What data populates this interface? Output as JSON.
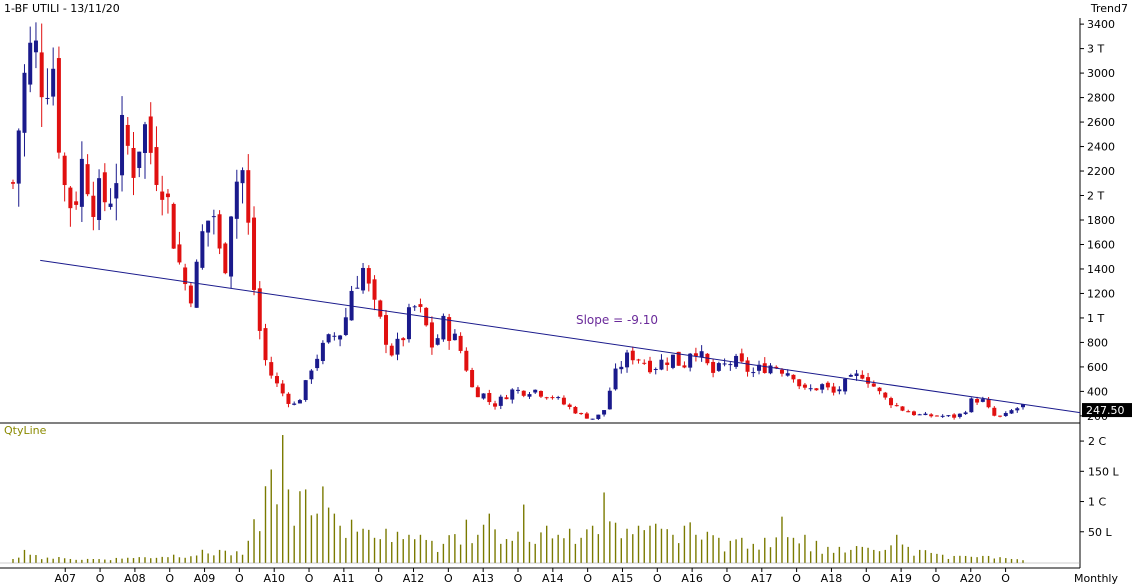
{
  "chart_data": [
    {
      "type": "candlestick",
      "title": "1-BF UTILI - 13/11/20",
      "indicator": "Trend7",
      "ylim": [
        150,
        3450
      ],
      "y_ticks": [
        {
          "v": 3400,
          "label": "3400"
        },
        {
          "v": 3200,
          "label": "3 T"
        },
        {
          "v": 3000,
          "label": "3000"
        },
        {
          "v": 2800,
          "label": "2800"
        },
        {
          "v": 2600,
          "label": "2600"
        },
        {
          "v": 2400,
          "label": "2400"
        },
        {
          "v": 2200,
          "label": "2200"
        },
        {
          "v": 2000,
          "label": "2 T"
        },
        {
          "v": 1800,
          "label": "1800"
        },
        {
          "v": 1600,
          "label": "1600"
        },
        {
          "v": 1400,
          "label": "1400"
        },
        {
          "v": 1200,
          "label": "1200"
        },
        {
          "v": 1000,
          "label": "1 T"
        },
        {
          "v": 800,
          "label": "800"
        },
        {
          "v": 600,
          "label": "600"
        },
        {
          "v": 400,
          "label": "400"
        },
        {
          "v": 200,
          "label": "200"
        }
      ],
      "last_price": 247.5,
      "last_price_label": "247.50",
      "trendline": {
        "from": {
          "i": 3,
          "y": 1470
        },
        "to": {
          "i": 176,
          "y": 210
        },
        "slope_label": "Slope = -9.10",
        "color": "#1a1a8c"
      },
      "up_color": "#1a1a8c",
      "down_color": "#e01010",
      "x_ticks": [
        {
          "i": 9,
          "label": "A07"
        },
        {
          "i": 15,
          "label": "O"
        },
        {
          "i": 21,
          "label": "A08"
        },
        {
          "i": 27,
          "label": "O"
        },
        {
          "i": 33,
          "label": "A09"
        },
        {
          "i": 39,
          "label": "O"
        },
        {
          "i": 45,
          "label": "A10"
        },
        {
          "i": 51,
          "label": "O"
        },
        {
          "i": 57,
          "label": "A11"
        },
        {
          "i": 63,
          "label": "O"
        },
        {
          "i": 69,
          "label": "A12"
        },
        {
          "i": 75,
          "label": "O"
        },
        {
          "i": 81,
          "label": "A13"
        },
        {
          "i": 87,
          "label": "O"
        },
        {
          "i": 93,
          "label": "A14"
        },
        {
          "i": 99,
          "label": "O"
        },
        {
          "i": 105,
          "label": "A15"
        },
        {
          "i": 111,
          "label": "O"
        },
        {
          "i": 117,
          "label": "A16"
        },
        {
          "i": 123,
          "label": "O"
        },
        {
          "i": 129,
          "label": "A17"
        },
        {
          "i": 135,
          "label": "O"
        },
        {
          "i": 141,
          "label": "A18"
        },
        {
          "i": 147,
          "label": "O"
        },
        {
          "i": 153,
          "label": "A19"
        },
        {
          "i": 159,
          "label": "O"
        },
        {
          "i": 165,
          "label": "A20"
        },
        {
          "i": 171,
          "label": "O"
        }
      ],
      "x_axis_label": "Monthly",
      "anchors": [
        [
          0,
          2100
        ],
        [
          1,
          2900
        ],
        [
          2,
          3250
        ],
        [
          3,
          2950
        ],
        [
          4,
          3100
        ],
        [
          5,
          2100
        ],
        [
          6,
          1900
        ],
        [
          7,
          2300
        ],
        [
          8,
          2000
        ],
        [
          9,
          1950
        ],
        [
          10,
          2050
        ],
        [
          11,
          2500
        ],
        [
          12,
          2250
        ],
        [
          13,
          2600
        ],
        [
          14,
          2300
        ],
        [
          15,
          2150
        ],
        [
          16,
          1700
        ],
        [
          17,
          1300
        ],
        [
          18,
          1200
        ],
        [
          19,
          1700
        ],
        [
          20,
          1900
        ],
        [
          21,
          1300
        ],
        [
          22,
          2100
        ],
        [
          23,
          2200
        ],
        [
          24,
          1300
        ],
        [
          25,
          700
        ],
        [
          26,
          500
        ],
        [
          27,
          380
        ],
        [
          28,
          280
        ],
        [
          29,
          380
        ],
        [
          30,
          650
        ],
        [
          31,
          750
        ],
        [
          32,
          850
        ],
        [
          33,
          900
        ],
        [
          34,
          1300
        ],
        [
          35,
          1400
        ],
        [
          36,
          1100
        ],
        [
          37,
          900
        ],
        [
          38,
          700
        ],
        [
          39,
          850
        ],
        [
          40,
          1100
        ],
        [
          41,
          1000
        ],
        [
          42,
          750
        ],
        [
          43,
          950
        ],
        [
          44,
          850
        ],
        [
          45,
          700
        ],
        [
          46,
          400
        ],
        [
          47,
          380
        ],
        [
          48,
          280
        ],
        [
          49,
          350
        ],
        [
          50,
          410
        ],
        [
          51,
          400
        ],
        [
          52,
          420
        ],
        [
          53,
          380
        ],
        [
          54,
          360
        ],
        [
          55,
          300
        ],
        [
          56,
          250
        ],
        [
          57,
          200
        ],
        [
          58,
          180
        ],
        [
          59,
          220
        ],
        [
          60,
          500
        ],
        [
          61,
          650
        ],
        [
          62,
          700
        ],
        [
          63,
          650
        ],
        [
          64,
          600
        ],
        [
          65,
          650
        ],
        [
          66,
          680
        ],
        [
          67,
          600
        ],
        [
          68,
          800
        ],
        [
          69,
          650
        ],
        [
          70,
          550
        ],
        [
          71,
          600
        ],
        [
          72,
          650
        ],
        [
          73,
          600
        ],
        [
          74,
          550
        ],
        [
          75,
          600
        ],
        [
          76,
          620
        ],
        [
          77,
          580
        ],
        [
          78,
          550
        ],
        [
          79,
          400
        ],
        [
          80,
          420
        ],
        [
          81,
          450
        ],
        [
          82,
          380
        ],
        [
          83,
          450
        ],
        [
          84,
          500
        ],
        [
          85,
          550
        ],
        [
          86,
          450
        ],
        [
          87,
          350
        ],
        [
          88,
          300
        ],
        [
          89,
          250
        ],
        [
          90,
          220
        ],
        [
          91,
          200
        ],
        [
          92,
          200
        ],
        [
          93,
          200
        ],
        [
          94,
          190
        ],
        [
          95,
          220
        ],
        [
          96,
          340
        ],
        [
          97,
          320
        ],
        [
          98,
          200
        ],
        [
          99,
          190
        ],
        [
          100,
          250
        ],
        [
          101,
          280
        ]
      ],
      "period_count": 177
    },
    {
      "type": "bar",
      "title": "QtyLine",
      "y_ticks": [
        {
          "v": 200,
          "label": "2 C"
        },
        {
          "v": 150,
          "label": "150 L"
        },
        {
          "v": 100,
          "label": "1 C"
        },
        {
          "v": 50,
          "label": "50 L"
        }
      ],
      "ylim": [
        0,
        215
      ],
      "color": "#7a7a00",
      "spikes": [
        [
          0,
          5
        ],
        [
          2,
          20
        ],
        [
          3,
          12
        ],
        [
          10,
          5
        ],
        [
          20,
          7
        ],
        [
          36,
          20
        ],
        [
          40,
          12
        ],
        [
          46,
          210
        ],
        [
          47,
          120
        ],
        [
          48,
          60
        ],
        [
          50,
          120
        ],
        [
          52,
          80
        ],
        [
          53,
          125
        ],
        [
          54,
          90
        ],
        [
          55,
          80
        ],
        [
          56,
          60
        ],
        [
          58,
          70
        ],
        [
          60,
          55
        ],
        [
          62,
          40
        ],
        [
          64,
          55
        ],
        [
          66,
          50
        ],
        [
          68,
          45
        ],
        [
          70,
          45
        ],
        [
          72,
          35
        ],
        [
          74,
          30
        ],
        [
          78,
          70
        ],
        [
          80,
          45
        ],
        [
          82,
          80
        ],
        [
          84,
          30
        ],
        [
          86,
          35
        ],
        [
          88,
          95
        ],
        [
          90,
          30
        ],
        [
          92,
          60
        ],
        [
          94,
          45
        ],
        [
          96,
          55
        ],
        [
          98,
          40
        ],
        [
          100,
          60
        ],
        [
          102,
          115
        ],
        [
          104,
          65
        ],
        [
          106,
          55
        ],
        [
          108,
          60
        ],
        [
          110,
          60
        ],
        [
          112,
          55
        ],
        [
          114,
          45
        ],
        [
          116,
          60
        ],
        [
          118,
          45
        ],
        [
          120,
          50
        ],
        [
          122,
          40
        ],
        [
          124,
          35
        ],
        [
          126,
          40
        ],
        [
          128,
          30
        ],
        [
          130,
          40
        ],
        [
          132,
          75
        ],
        [
          134,
          40
        ],
        [
          136,
          45
        ],
        [
          138,
          35
        ],
        [
          140,
          25
        ],
        [
          142,
          25
        ],
        [
          144,
          20
        ],
        [
          146,
          25
        ],
        [
          148,
          20
        ],
        [
          150,
          20
        ],
        [
          152,
          45
        ],
        [
          154,
          25
        ],
        [
          156,
          20
        ],
        [
          158,
          15
        ],
        [
          160,
          12
        ],
        [
          162,
          10
        ],
        [
          164,
          10
        ],
        [
          166,
          8
        ],
        [
          168,
          10
        ],
        [
          170,
          8
        ],
        [
          172,
          5
        ],
        [
          174,
          3
        ]
      ]
    }
  ],
  "price_annotation": "Slope = -9.10"
}
